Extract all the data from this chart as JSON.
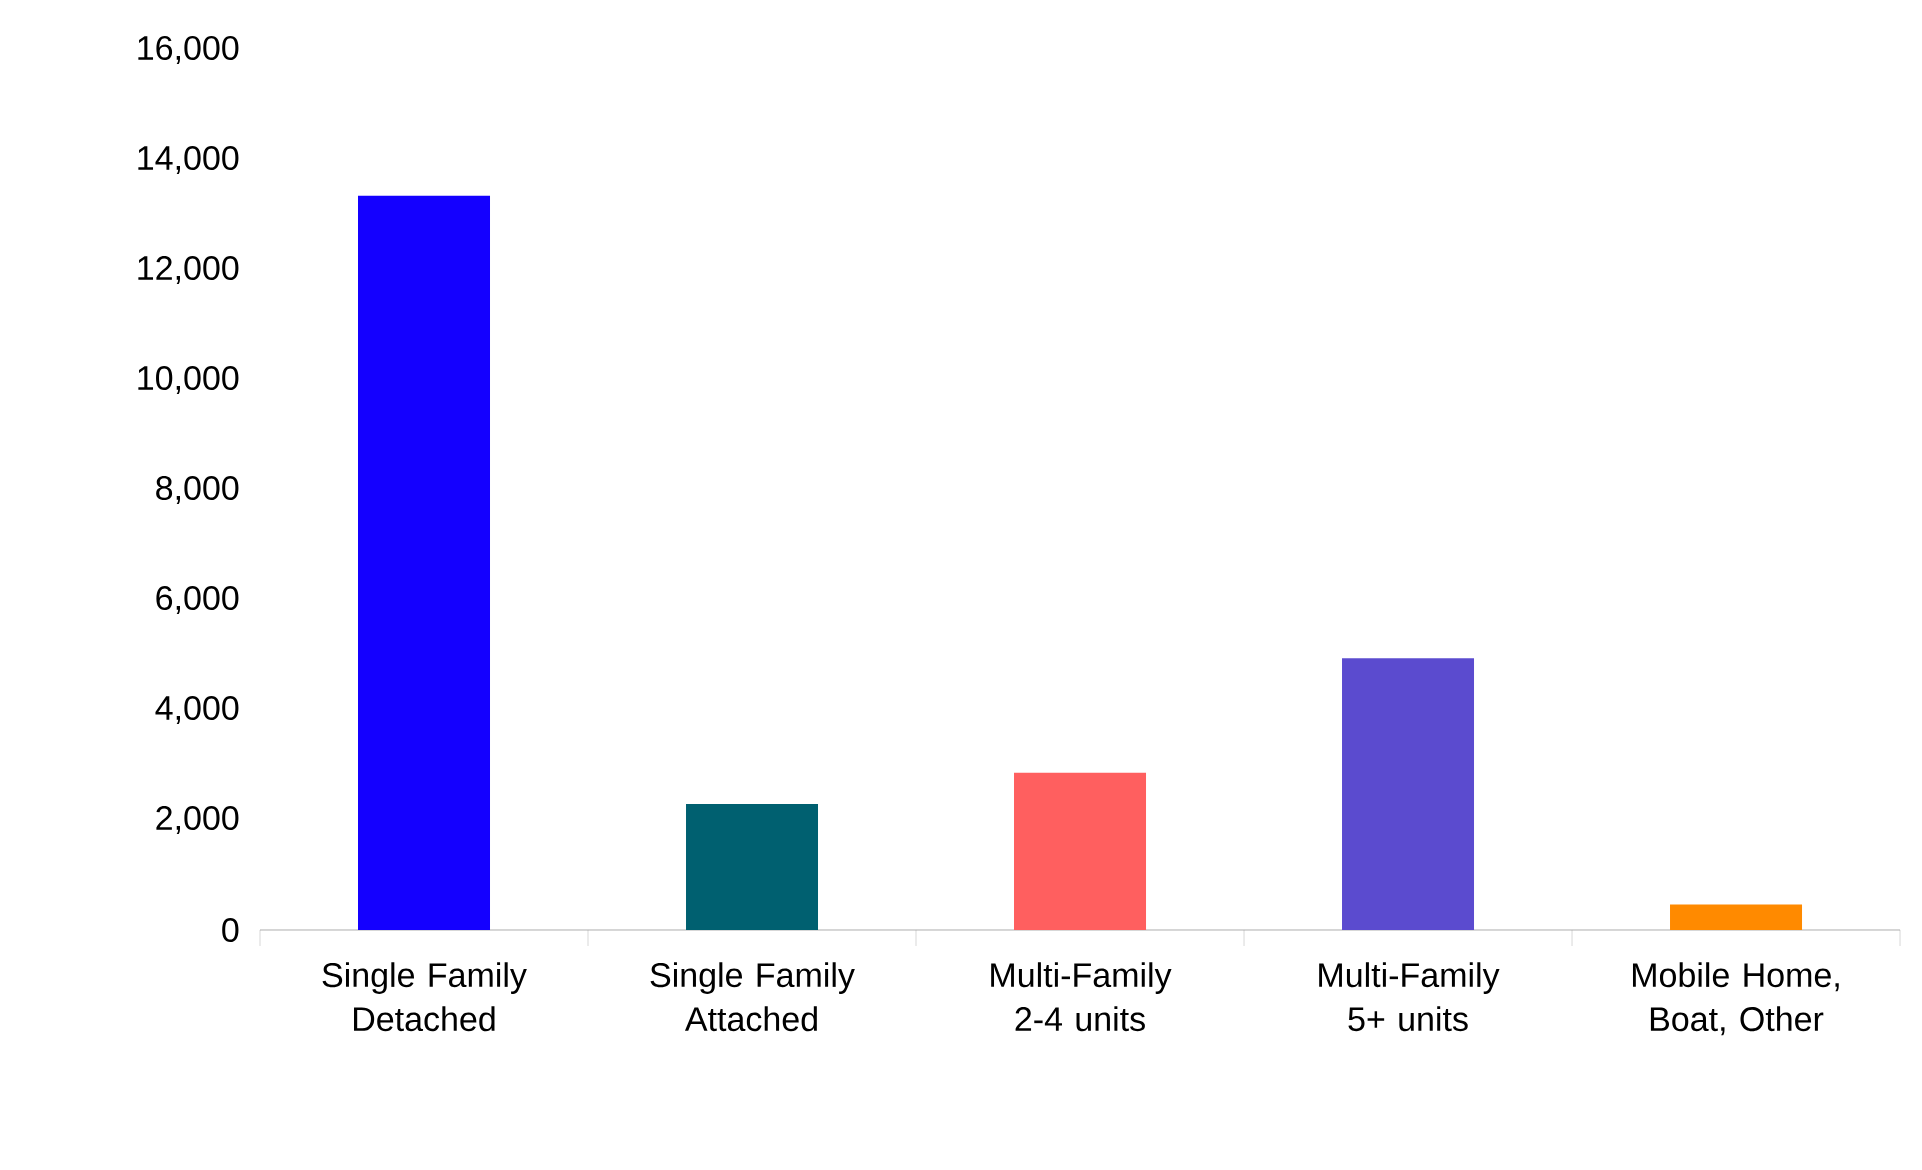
{
  "chart_data": {
    "type": "bar",
    "categories": [
      "Single Family Detached",
      "Single Family Attached",
      "Multi-Family 2-4 units",
      "Multi-Family 5+ units",
      "Mobile Home, Boat, Other"
    ],
    "values": [
      13350,
      2290,
      2860,
      4940,
      465
    ],
    "colors": [
      "#1400ff",
      "#006070",
      "#ff5f5f",
      "#5b4bcf",
      "#ff8a00"
    ],
    "ylim": [
      0,
      16000
    ],
    "yticks": [
      {
        "value": 0,
        "label": "0"
      },
      {
        "value": 2000,
        "label": "2,000"
      },
      {
        "value": 4000,
        "label": "4,000"
      },
      {
        "value": 6000,
        "label": "6,000"
      },
      {
        "value": 8000,
        "label": "8,000"
      },
      {
        "value": 10000,
        "label": "10,000"
      },
      {
        "value": 12000,
        "label": "12,000"
      },
      {
        "value": 14000,
        "label": "14,000"
      },
      {
        "value": 16000,
        "label": "16,000"
      }
    ]
  }
}
